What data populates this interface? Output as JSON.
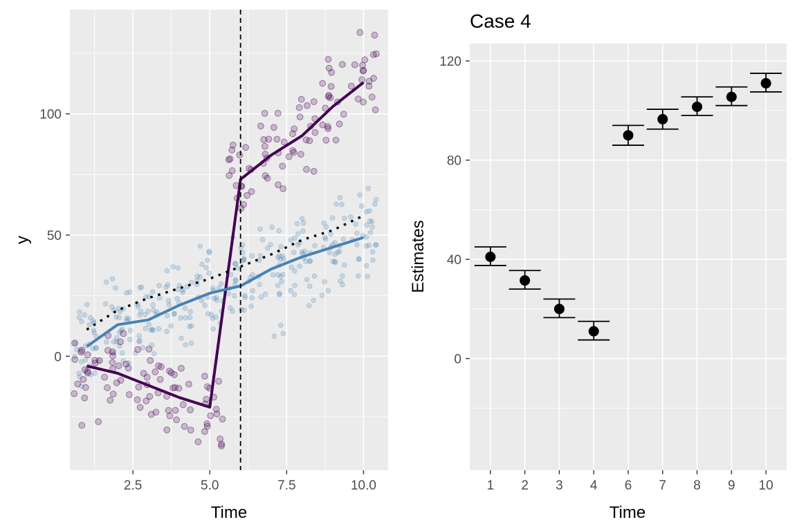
{
  "chart_data": [
    {
      "type": "scatter",
      "title": "",
      "xlabel": "Time",
      "ylabel": "y",
      "xlim": [
        0.45,
        10.8
      ],
      "ylim": [
        -47,
        143
      ],
      "xticks": [
        {
          "value": 2.5,
          "label": "2.5"
        },
        {
          "value": 5.0,
          "label": "5.0"
        },
        {
          "value": 7.5,
          "label": "7.5"
        },
        {
          "value": 10.0,
          "label": "10.0"
        }
      ],
      "yticks": [
        {
          "value": 0,
          "label": "0"
        },
        {
          "value": 50,
          "label": "50"
        },
        {
          "value": 100,
          "label": "100"
        }
      ],
      "grid": true,
      "reference_line": {
        "x": 6,
        "style": "dashed",
        "color": "#000000"
      },
      "colors": {
        "treated": "#440154",
        "control": "#4682b4",
        "counterfactual": "#000000",
        "panel": "#ebebeb"
      },
      "treated_points": [
        [
          1,
          -28
        ],
        [
          1,
          -12
        ],
        [
          1,
          -8
        ],
        [
          1,
          -5
        ],
        [
          1,
          -3
        ],
        [
          1,
          -1
        ],
        [
          1,
          2
        ],
        [
          1,
          4
        ],
        [
          1,
          -16
        ],
        [
          2,
          -17
        ],
        [
          2,
          -14
        ],
        [
          2,
          -10
        ],
        [
          2,
          -7
        ],
        [
          2,
          -4
        ],
        [
          2,
          -2
        ],
        [
          2,
          1
        ],
        [
          2,
          4
        ],
        [
          2,
          8
        ],
        [
          3,
          -24
        ],
        [
          3,
          -20
        ],
        [
          3,
          -17
        ],
        [
          3,
          -14
        ],
        [
          3,
          -11
        ],
        [
          3,
          -8
        ],
        [
          3,
          -5
        ],
        [
          3,
          -2
        ],
        [
          3,
          2
        ],
        [
          4,
          -32
        ],
        [
          4,
          -27
        ],
        [
          4,
          -24
        ],
        [
          4,
          -21
        ],
        [
          4,
          -18
        ],
        [
          4,
          -15
        ],
        [
          4,
          -12
        ],
        [
          4,
          -8
        ],
        [
          4,
          -5
        ],
        [
          5,
          -38
        ],
        [
          5,
          -34
        ],
        [
          5,
          -30
        ],
        [
          5,
          -27
        ],
        [
          5,
          -24
        ],
        [
          5,
          -21
        ],
        [
          5,
          -18
        ],
        [
          5,
          -14
        ],
        [
          5,
          -10
        ],
        [
          6,
          62
        ],
        [
          6,
          66
        ],
        [
          6,
          69
        ],
        [
          6,
          72
        ],
        [
          6,
          75
        ],
        [
          6,
          78
        ],
        [
          6,
          81
        ],
        [
          6,
          84
        ],
        [
          6,
          88
        ],
        [
          7,
          71
        ],
        [
          7,
          75
        ],
        [
          7,
          78
        ],
        [
          7,
          82
        ],
        [
          7,
          85
        ],
        [
          7,
          88
        ],
        [
          7,
          91
        ],
        [
          7,
          95
        ],
        [
          7,
          99
        ],
        [
          8,
          78
        ],
        [
          8,
          82
        ],
        [
          8,
          86
        ],
        [
          8,
          89
        ],
        [
          8,
          92
        ],
        [
          8,
          95
        ],
        [
          8,
          99
        ],
        [
          8,
          103
        ],
        [
          8,
          107
        ],
        [
          9,
          88
        ],
        [
          9,
          93
        ],
        [
          9,
          97
        ],
        [
          9,
          101
        ],
        [
          9,
          105
        ],
        [
          9,
          109
        ],
        [
          9,
          113
        ],
        [
          9,
          117
        ],
        [
          9,
          121
        ],
        [
          10,
          103
        ],
        [
          10,
          106
        ],
        [
          10,
          110
        ],
        [
          10,
          113
        ],
        [
          10,
          116
        ],
        [
          10,
          119
        ],
        [
          10,
          122
        ],
        [
          10,
          126
        ],
        [
          10,
          134
        ]
      ],
      "control_points": [
        [
          1,
          -10
        ],
        [
          1,
          -6
        ],
        [
          1,
          -2
        ],
        [
          1,
          1
        ],
        [
          1,
          4
        ],
        [
          1,
          6
        ],
        [
          1,
          9
        ],
        [
          1,
          12
        ],
        [
          1,
          16
        ],
        [
          1,
          19
        ],
        [
          2,
          0
        ],
        [
          2,
          4
        ],
        [
          2,
          7
        ],
        [
          2,
          10
        ],
        [
          2,
          13
        ],
        [
          2,
          15
        ],
        [
          2,
          18
        ],
        [
          2,
          21
        ],
        [
          2,
          24
        ],
        [
          2,
          29
        ],
        [
          3,
          2
        ],
        [
          3,
          6
        ],
        [
          3,
          9
        ],
        [
          3,
          12
        ],
        [
          3,
          15
        ],
        [
          3,
          17
        ],
        [
          3,
          20
        ],
        [
          3,
          23
        ],
        [
          3,
          26
        ],
        [
          3,
          31
        ],
        [
          4,
          7
        ],
        [
          4,
          11
        ],
        [
          4,
          14
        ],
        [
          4,
          17
        ],
        [
          4,
          20
        ],
        [
          4,
          22
        ],
        [
          4,
          25
        ],
        [
          4,
          28
        ],
        [
          4,
          31
        ],
        [
          4,
          37
        ],
        [
          5,
          13
        ],
        [
          5,
          17
        ],
        [
          5,
          20
        ],
        [
          5,
          23
        ],
        [
          5,
          26
        ],
        [
          5,
          28
        ],
        [
          5,
          31
        ],
        [
          5,
          34
        ],
        [
          5,
          37
        ],
        [
          5,
          44
        ],
        [
          6,
          18
        ],
        [
          6,
          22
        ],
        [
          6,
          25
        ],
        [
          6,
          28
        ],
        [
          6,
          31
        ],
        [
          6,
          33
        ],
        [
          6,
          36
        ],
        [
          6,
          39
        ],
        [
          6,
          42
        ],
        [
          6,
          47
        ],
        [
          7,
          11
        ],
        [
          7,
          24
        ],
        [
          7,
          28
        ],
        [
          7,
          31
        ],
        [
          7,
          34
        ],
        [
          7,
          37
        ],
        [
          7,
          40
        ],
        [
          7,
          43
        ],
        [
          7,
          47
        ],
        [
          7,
          52
        ],
        [
          8,
          23
        ],
        [
          8,
          30
        ],
        [
          8,
          34
        ],
        [
          8,
          37
        ],
        [
          8,
          40
        ],
        [
          8,
          42
        ],
        [
          8,
          45
        ],
        [
          8,
          48
        ],
        [
          8,
          51
        ],
        [
          8,
          55
        ],
        [
          9,
          27
        ],
        [
          9,
          33
        ],
        [
          9,
          37
        ],
        [
          9,
          40
        ],
        [
          9,
          43
        ],
        [
          9,
          45
        ],
        [
          9,
          48
        ],
        [
          9,
          51
        ],
        [
          9,
          56
        ],
        [
          9,
          64
        ],
        [
          10,
          35
        ],
        [
          10,
          40
        ],
        [
          10,
          44
        ],
        [
          10,
          47
        ],
        [
          10,
          50
        ],
        [
          10,
          52
        ],
        [
          10,
          55
        ],
        [
          10,
          58
        ],
        [
          10,
          61
        ],
        [
          10,
          67
        ]
      ],
      "series": [
        {
          "points": [
            [
              1,
              -4
            ],
            [
              2,
              -7
            ],
            [
              3,
              -12
            ],
            [
              4,
              -17
            ],
            [
              5,
              -21
            ],
            [
              6,
              73
            ],
            [
              7,
              83
            ],
            [
              8,
              91
            ],
            [
              9,
              103
            ],
            [
              10,
              113
            ]
          ],
          "color": "#440154",
          "style": "solid"
        },
        {
          "points": [
            [
              1,
              4
            ],
            [
              2,
              13
            ],
            [
              3,
              15
            ],
            [
              4,
              21
            ],
            [
              5,
              26
            ],
            [
              6,
              29
            ],
            [
              7,
              36
            ],
            [
              8,
              41
            ],
            [
              9,
              45
            ],
            [
              10,
              49
            ]
          ],
          "color": "#4682b4",
          "style": "solid"
        },
        {
          "points": [
            [
              1,
              11
            ],
            [
              2,
              19
            ],
            [
              3,
              24
            ],
            [
              4,
              28
            ],
            [
              5,
              32
            ],
            [
              6,
              37
            ],
            [
              7,
              42
            ],
            [
              8,
              48
            ],
            [
              9,
              52
            ],
            [
              10,
              58
            ]
          ],
          "color": "#000000",
          "style": "dotted"
        }
      ]
    },
    {
      "type": "errorbar",
      "title": "Case 4",
      "xlabel": "Time",
      "ylabel": "Estimates",
      "ylim": [
        -45,
        127
      ],
      "categories": [
        "1",
        "2",
        "3",
        "4",
        "6",
        "7",
        "8",
        "9",
        "10"
      ],
      "yticks": [
        {
          "value": 0,
          "label": "0"
        },
        {
          "value": 40,
          "label": "40"
        },
        {
          "value": 80,
          "label": "80"
        },
        {
          "value": 120,
          "label": "120"
        }
      ],
      "grid": true,
      "estimates": [
        41,
        31.5,
        20,
        11,
        90,
        96.5,
        101.5,
        105.5,
        111
      ],
      "lower": [
        37.5,
        28,
        16.5,
        7.5,
        86,
        92.5,
        98,
        102,
        107.5
      ],
      "upper": [
        45,
        35.5,
        24,
        15,
        94,
        100.5,
        105.5,
        109.5,
        115
      ],
      "point_color": "#000000"
    }
  ]
}
